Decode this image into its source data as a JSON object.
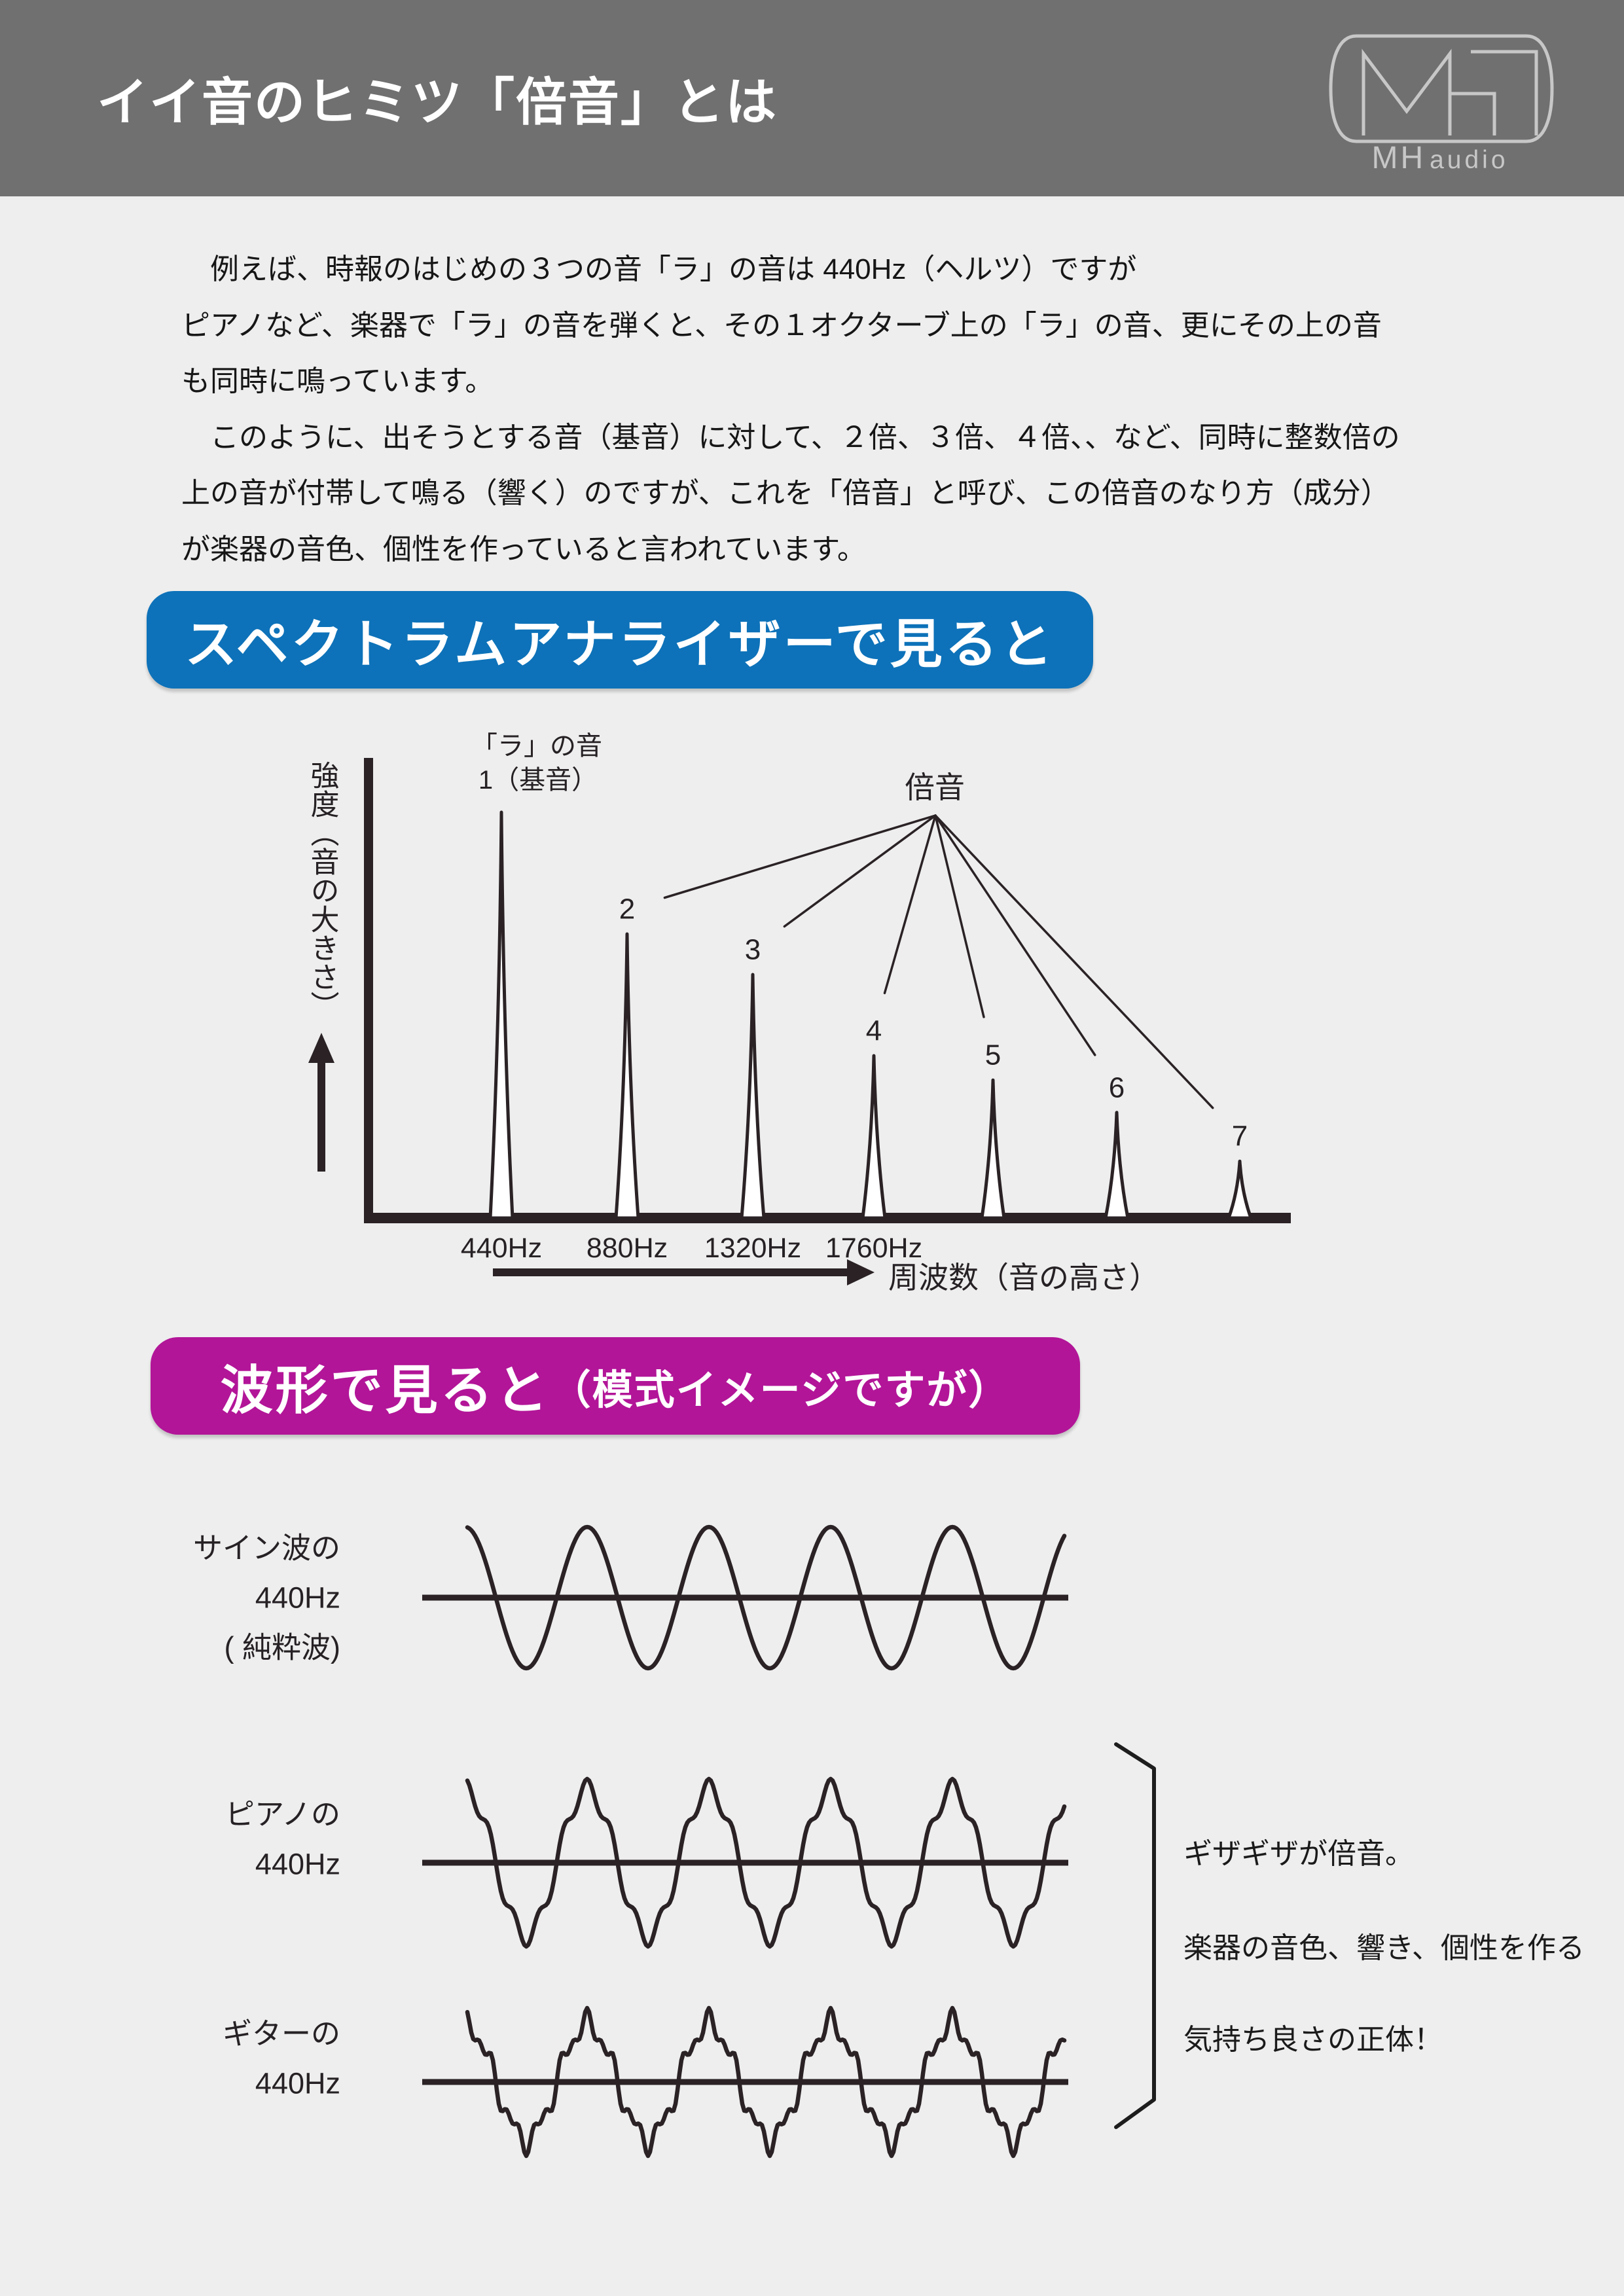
{
  "page": {
    "background": "#eeeeee"
  },
  "header": {
    "background": "#707070",
    "title": "イイ音のヒミツ「倍音」とは",
    "logo": {
      "mh": "MH",
      "audio": "audio",
      "color": "#c7c7c7"
    }
  },
  "intro": {
    "lines": [
      "例えば、時報のはじめの３つの音「ラ」の音は 440Hz（ヘルツ）ですが",
      "ピアノなど、楽器で「ラ」の音を弾くと、その１オクターブ上の「ラ」の音、更にその上の音",
      "も同時に鳴っています。",
      "このように、出そうとする音（基音）に対して、２倍、３倍、４倍、、など、同時に整数倍の",
      "上の音が付帯して鳴る（響く）のですが、これを「倍音」と呼び、この倍音のなり方（成分）",
      "が楽器の音色、個性を作っていると言われています。"
    ]
  },
  "spectrum_section": {
    "banner": "スペクトラムアナライザーで見ると",
    "banner_color": "#0d72b9"
  },
  "waveform_section": {
    "banner_main": "波形で見ると",
    "banner_sub": "（模式イメージですが）",
    "banner_color": "#b21598"
  },
  "caption": {
    "lines": [
      "ギザギザが倍音。",
      "楽器の音色、響き、個性を作る",
      "気持ち良さの正体！"
    ]
  },
  "chart_data": [
    {
      "type": "bar",
      "subtype": "audio-frequency-spectrum",
      "title": "スペクトラムアナライザーで見ると",
      "xlabel": "周波数（音の高さ）",
      "ylabel": "強度（音の大きさ）",
      "fundamental_label_top": "「ラ」の音",
      "fundamental_label": "1（基音）",
      "overtone_label": "倍音",
      "categories": [
        "1",
        "2",
        "3",
        "4",
        "5",
        "6",
        "7"
      ],
      "values": [
        1.0,
        0.7,
        0.6,
        0.4,
        0.34,
        0.26,
        0.14
      ],
      "x_tick_labels": [
        "440Hz",
        "880Hz",
        "1320Hz",
        "1760Hz"
      ],
      "ylim": [
        0,
        1.05
      ],
      "grid": false,
      "ink_color": "#2a2225"
    },
    {
      "type": "line",
      "subtype": "waveforms",
      "frequency_hz": 440,
      "series": [
        {
          "name": "サイン波の 440Hz ( 純粋波)",
          "label_lines": [
            "サイン波の",
            "440Hz",
            "( 純粋波)"
          ],
          "harmonics": [
            {
              "n": 1,
              "amp": 1.0
            }
          ]
        },
        {
          "name": "ピアノの 440Hz",
          "label_lines": [
            "ピアノの",
            "440Hz"
          ],
          "harmonics": [
            {
              "n": 1,
              "amp": 0.88
            },
            {
              "n": 5,
              "amp": 0.12
            }
          ]
        },
        {
          "name": "ギターの 440Hz",
          "label_lines": [
            "ギターの",
            "440Hz"
          ],
          "harmonics": [
            {
              "n": 1,
              "amp": 0.78
            },
            {
              "n": 5,
              "amp": 0.13
            },
            {
              "n": 9,
              "amp": 0.09
            }
          ]
        }
      ]
    }
  ]
}
